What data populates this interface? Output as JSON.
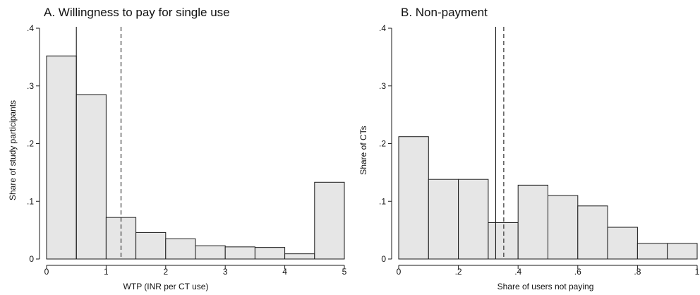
{
  "chart_data": [
    {
      "type": "bar",
      "title": "A. Willingness to pay for single use",
      "xlabel": "WTP (INR per CT use)",
      "ylabel": "Share of study participants",
      "xlim": [
        0,
        5
      ],
      "ylim": [
        0,
        0.4
      ],
      "xticks": [
        0,
        1,
        2,
        3,
        4,
        5
      ],
      "xtick_labels": [
        "0",
        "1",
        "2",
        "3",
        "4",
        "5"
      ],
      "yticks": [
        0,
        0.1,
        0.2,
        0.3,
        0.4
      ],
      "ytick_labels": [
        "0",
        ".1",
        ".2",
        ".3",
        ".4"
      ],
      "grid": false,
      "bins": [
        {
          "start": 0.0,
          "end": 0.5,
          "value": 0.352
        },
        {
          "start": 0.5,
          "end": 1.0,
          "value": 0.285
        },
        {
          "start": 1.0,
          "end": 1.5,
          "value": 0.072
        },
        {
          "start": 1.5,
          "end": 2.0,
          "value": 0.046
        },
        {
          "start": 2.0,
          "end": 2.5,
          "value": 0.035
        },
        {
          "start": 2.5,
          "end": 3.0,
          "value": 0.023
        },
        {
          "start": 3.0,
          "end": 3.5,
          "value": 0.021
        },
        {
          "start": 3.5,
          "end": 4.0,
          "value": 0.02
        },
        {
          "start": 4.0,
          "end": 4.5,
          "value": 0.009
        },
        {
          "start": 4.5,
          "end": 5.0,
          "value": 0.133
        }
      ],
      "reference_lines": [
        {
          "style": "solid",
          "x": 0.5
        },
        {
          "style": "dashed",
          "x": 1.25
        }
      ]
    },
    {
      "type": "bar",
      "title": "B. Non-payment",
      "xlabel": "Share of users not paying",
      "ylabel": "Share of CTs",
      "xlim": [
        0,
        1
      ],
      "ylim": [
        0,
        0.4
      ],
      "xticks": [
        0,
        0.2,
        0.4,
        0.6,
        0.8,
        1
      ],
      "xtick_labels": [
        "0",
        ".2",
        ".4",
        ".6",
        ".8",
        "1"
      ],
      "yticks": [
        0,
        0.1,
        0.2,
        0.3,
        0.4
      ],
      "ytick_labels": [
        "0",
        ".1",
        ".2",
        ".3",
        ".4"
      ],
      "grid": false,
      "bins": [
        {
          "start": 0.0,
          "end": 0.1,
          "value": 0.212
        },
        {
          "start": 0.1,
          "end": 0.2,
          "value": 0.138
        },
        {
          "start": 0.2,
          "end": 0.3,
          "value": 0.138
        },
        {
          "start": 0.3,
          "end": 0.4,
          "value": 0.063
        },
        {
          "start": 0.4,
          "end": 0.5,
          "value": 0.128
        },
        {
          "start": 0.5,
          "end": 0.6,
          "value": 0.11
        },
        {
          "start": 0.6,
          "end": 0.7,
          "value": 0.092
        },
        {
          "start": 0.7,
          "end": 0.8,
          "value": 0.055
        },
        {
          "start": 0.8,
          "end": 0.9,
          "value": 0.027
        },
        {
          "start": 0.9,
          "end": 1.0,
          "value": 0.027
        }
      ],
      "reference_lines": [
        {
          "style": "solid",
          "x": 0.325
        },
        {
          "style": "dashed",
          "x": 0.352
        }
      ]
    }
  ]
}
